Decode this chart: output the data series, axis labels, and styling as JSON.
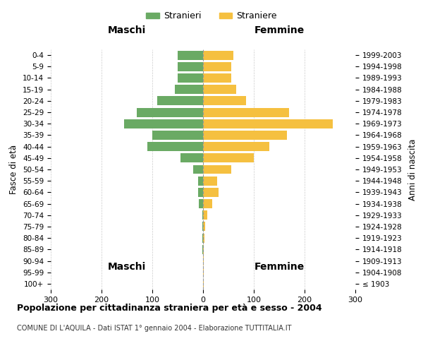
{
  "age_groups": [
    "100+",
    "95-99",
    "90-94",
    "85-89",
    "80-84",
    "75-79",
    "70-74",
    "65-69",
    "60-64",
    "55-59",
    "50-54",
    "45-49",
    "40-44",
    "35-39",
    "30-34",
    "25-29",
    "20-24",
    "15-19",
    "10-14",
    "5-9",
    "0-4"
  ],
  "birth_years": [
    "≤ 1903",
    "1904-1908",
    "1909-1913",
    "1914-1918",
    "1919-1923",
    "1924-1928",
    "1929-1933",
    "1934-1938",
    "1939-1943",
    "1944-1948",
    "1949-1953",
    "1954-1958",
    "1959-1963",
    "1964-1968",
    "1969-1973",
    "1974-1978",
    "1979-1983",
    "1984-1988",
    "1989-1993",
    "1994-1998",
    "1999-2003"
  ],
  "maschi": [
    0,
    0,
    0,
    1,
    1,
    1,
    2,
    8,
    10,
    10,
    20,
    45,
    110,
    100,
    155,
    130,
    90,
    55,
    50,
    50,
    50
  ],
  "femmine": [
    1,
    1,
    1,
    2,
    3,
    4,
    8,
    18,
    30,
    28,
    55,
    100,
    130,
    165,
    255,
    170,
    85,
    65,
    55,
    55,
    60
  ],
  "maschi_color": "#6aaa64",
  "femmine_color": "#f5c040",
  "background_color": "#ffffff",
  "grid_color": "#cccccc",
  "title": "Popolazione per cittadinanza straniera per età e sesso - 2004",
  "subtitle": "COMUNE DI L'AQUILA - Dati ISTAT 1° gennaio 2004 - Elaborazione TUTTITALIA.IT",
  "ylabel_left": "Fasce di età",
  "ylabel_right": "Anni di nascita",
  "xlabel_left": "Maschi",
  "xlabel_right": "Femmine",
  "legend_maschi": "Stranieri",
  "legend_femmine": "Straniere",
  "xlim": 300
}
